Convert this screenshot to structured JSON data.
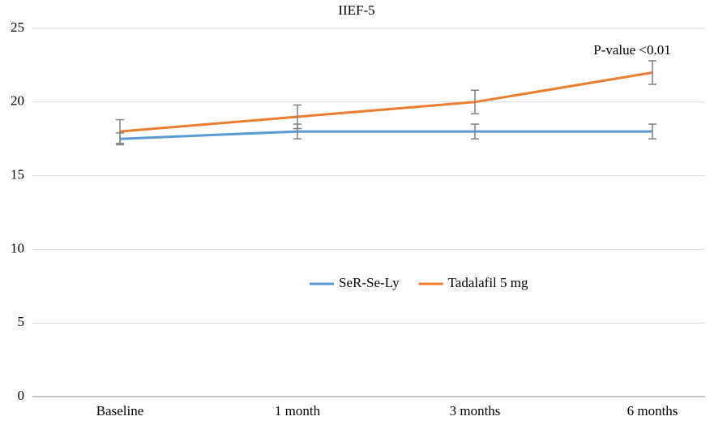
{
  "chart_data": {
    "type": "line",
    "title": "IIEF-5",
    "annotation": "P-value <0.01",
    "categories": [
      "Baseline",
      "1 month",
      "3 months",
      "6  months"
    ],
    "series": [
      {
        "name": "SeR-Se-Ly",
        "color": "#5b9bd5",
        "values": [
          17.5,
          18,
          18,
          18
        ],
        "errors": [
          0.4,
          0.5,
          0.5,
          0.5
        ]
      },
      {
        "name": "Tadalafil 5 mg",
        "color": "#ed7d31",
        "values": [
          18,
          19,
          20,
          22
        ],
        "errors": [
          0.8,
          0.8,
          0.8,
          0.8
        ]
      }
    ],
    "ylim": [
      0,
      25
    ],
    "yticks": [
      0,
      5,
      10,
      15,
      20,
      25
    ],
    "grid": true,
    "legend": "center"
  }
}
